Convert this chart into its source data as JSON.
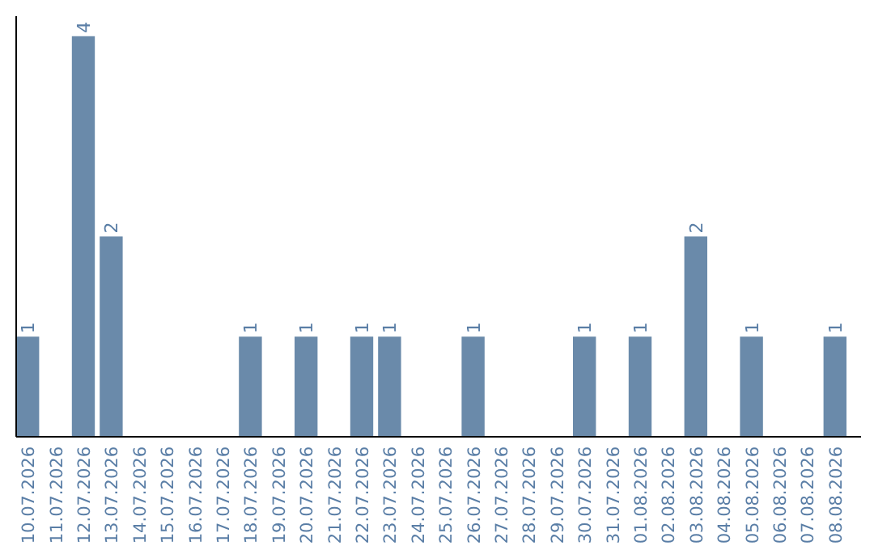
{
  "chart_data": {
    "type": "bar",
    "categories": [
      "10.07.2026",
      "11.07.2026",
      "12.07.2026",
      "13.07.2026",
      "14.07.2026",
      "15.07.2026",
      "16.07.2026",
      "17.07.2026",
      "18.07.2026",
      "19.07.2026",
      "20.07.2026",
      "21.07.2026",
      "22.07.2026",
      "23.07.2026",
      "24.07.2026",
      "25.07.2026",
      "26.07.2026",
      "27.07.2026",
      "28.07.2026",
      "29.07.2026",
      "30.07.2026",
      "31.07.2026",
      "01.08.2026",
      "02.08.2026",
      "03.08.2026",
      "04.08.2026",
      "05.08.2026",
      "06.08.2026",
      "07.08.2026",
      "08.08.2026"
    ],
    "values": [
      1,
      0,
      4,
      2,
      0,
      0,
      0,
      0,
      1,
      0,
      1,
      0,
      1,
      1,
      0,
      0,
      1,
      0,
      0,
      0,
      1,
      0,
      1,
      0,
      2,
      0,
      1,
      0,
      0,
      1
    ],
    "value_labels": [
      "1",
      null,
      "4",
      "2",
      null,
      null,
      null,
      null,
      "1",
      null,
      "1",
      null,
      "1",
      "1",
      null,
      null,
      "1",
      null,
      null,
      null,
      "1",
      null,
      "1",
      null,
      "2",
      null,
      "1",
      null,
      null,
      "1"
    ],
    "color": "#6a8aaa"
  }
}
